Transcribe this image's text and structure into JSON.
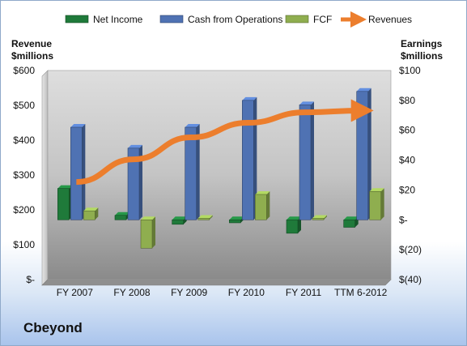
{
  "chart_data": {
    "type": "bar",
    "company": "Cbeyond",
    "categories": [
      "FY 2007",
      "FY 2008",
      "FY 2009",
      "FY 2010",
      "FY 2011",
      "TTM 6-2012"
    ],
    "series": [
      {
        "name": "Net Income",
        "axis": "right",
        "type": "bar",
        "color": "#1f7a3a",
        "values": [
          21,
          3,
          -3,
          -2,
          -9,
          -5
        ]
      },
      {
        "name": "Cash from Operations",
        "axis": "right",
        "type": "bar",
        "color": "#4f72b3",
        "values": [
          62,
          48,
          62,
          80,
          77,
          86
        ]
      },
      {
        "name": "FCF",
        "axis": "right",
        "type": "bar",
        "color": "#8fae4f",
        "values": [
          6,
          -19,
          1,
          17,
          1,
          19
        ]
      },
      {
        "name": "Revenues",
        "axis": "left",
        "type": "line",
        "color": "#ec7e2d",
        "values": [
          280,
          345,
          408,
          450,
          480,
          485
        ]
      }
    ],
    "left_axis": {
      "title_line1": "Revenue",
      "title_line2": "$millions",
      "ylim": [
        0,
        600
      ],
      "ticks": [
        0,
        100,
        200,
        300,
        400,
        500,
        600
      ],
      "tick_labels": [
        "$-",
        "$100",
        "$200",
        "$300",
        "$400",
        "$500",
        "$600"
      ]
    },
    "right_axis": {
      "title_line1": "Earnings",
      "title_line2": "$millions",
      "ylim": [
        -40,
        100
      ],
      "ticks": [
        -40,
        -20,
        0,
        20,
        40,
        60,
        80,
        100
      ],
      "tick_labels": [
        "$(40)",
        "$(20)",
        "$-",
        "$20",
        "$40",
        "$60",
        "$80",
        "$100"
      ]
    },
    "legend_position": "top",
    "grid": false
  }
}
